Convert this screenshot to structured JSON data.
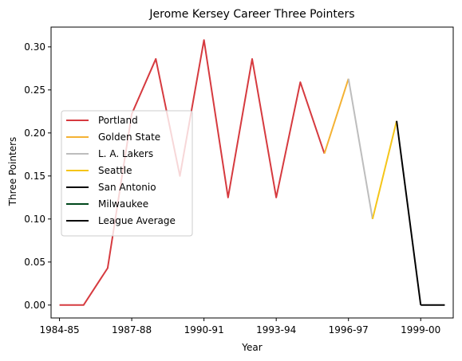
{
  "chart_data": {
    "type": "line",
    "title": "Jerome Kersey Career Three Pointers",
    "xlabel": "Year",
    "ylabel": "Three Pointers",
    "x_ticks": [
      "1984-85",
      "1987-88",
      "1990-91",
      "1993-94",
      "1996-97",
      "1999-00"
    ],
    "y_ticks": [
      "0.00",
      "0.05",
      "0.10",
      "0.15",
      "0.20",
      "0.25",
      "0.30"
    ],
    "ylim": [
      -0.015,
      0.323
    ],
    "grid": false,
    "legend_position": "center-left",
    "series": [
      {
        "name": "Portland",
        "color": "#d63a3f",
        "x": [
          "1984-85",
          "1985-86",
          "1986-87",
          "1987-88",
          "1988-89",
          "1989-90",
          "1990-91",
          "1991-92",
          "1992-93",
          "1993-94",
          "1994-95",
          "1995-96"
        ],
        "values": [
          0.0,
          0.0,
          0.043,
          0.222,
          0.286,
          0.15,
          0.308,
          0.125,
          0.286,
          0.125,
          0.259,
          0.176
        ]
      },
      {
        "name": "Golden State",
        "color": "#f4b234",
        "x": [
          "1995-96",
          "1996-97"
        ],
        "values": [
          0.176,
          0.263
        ]
      },
      {
        "name": "L. A. Lakers",
        "color": "#bdbdbd",
        "x": [
          "1996-97",
          "1997-98"
        ],
        "values": [
          0.263,
          0.1
        ]
      },
      {
        "name": "Seattle",
        "color": "#f5c518",
        "x": [
          "1997-98",
          "1998-99"
        ],
        "values": [
          0.1,
          0.214
        ]
      },
      {
        "name": "San Antonio",
        "color": "#000000",
        "x": [
          "1998-99",
          "1999-00"
        ],
        "values": [
          0.214,
          0.0
        ]
      },
      {
        "name": "Milwaukee",
        "color": "#00471b",
        "x": [],
        "values": []
      },
      {
        "name": "League Average",
        "color": "#000000",
        "x": [
          "1999-00",
          "2000-01"
        ],
        "values": [
          0.0,
          0.0
        ]
      }
    ]
  }
}
